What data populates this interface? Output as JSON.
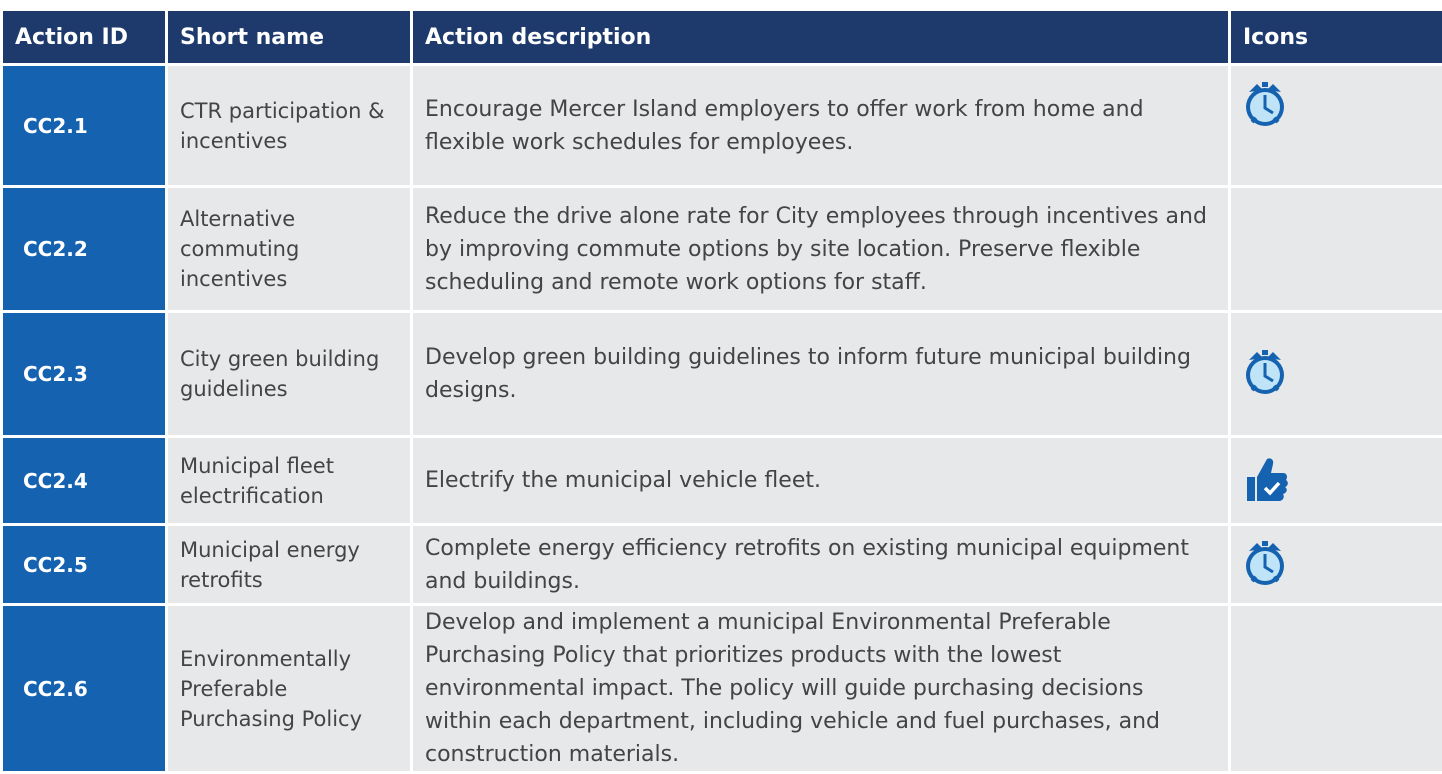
{
  "table": {
    "header": [
      "Action ID",
      "Short name",
      "Action description",
      "Icons"
    ],
    "rows": [
      [
        "CC2.1",
        "CTR participation & incentives",
        "Encourage Mercer Island employers to offer work from home and flexible work schedules for employees."
      ],
      [
        "CC2.2",
        "Alternative commuting incentives",
        "Reduce the drive alone rate for City employees through incentives and by improving commute options by site location. Preserve flexible scheduling and remote work options for staff."
      ],
      [
        "CC2.3",
        "City green building guidelines",
        "Develop green building guidelines to inform future municipal building designs."
      ],
      [
        "CC2.4",
        "Municipal fleet electrification",
        "Electrify the municipal vehicle fleet."
      ],
      [
        "CC2.5",
        "Municipal energy retrofits",
        "Complete energy efficiency retrofits on existing municipal equipment and buildings."
      ],
      [
        "CC2.6",
        "Environmentally Preferable Purchasing Policy",
        "Develop and implement a municipal Environmental Preferable Purchasing Policy that prioritizes products with the lowest environmental impact. The policy will guide purchasing decisions within each department, including vehicle and fuel purchases, and construction materials."
      ]
    ]
  }
}
